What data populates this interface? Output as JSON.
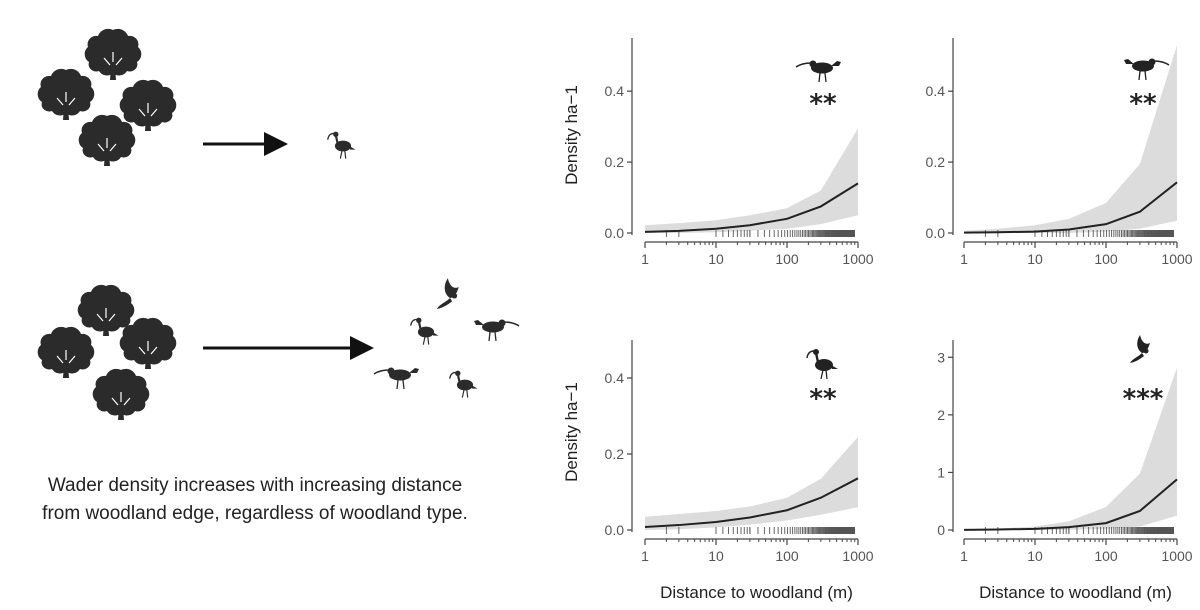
{
  "caption": {
    "line1": "Wader density increases with increasing distance",
    "line2": "from woodland edge, regardless of woodland type."
  },
  "icons": {
    "tree": "tree-icon",
    "arrow": "arrow-right-icon",
    "wader": "wader-bird-icon"
  },
  "colors": {
    "line": "#222222",
    "band": "#dcdcdc",
    "tree": "#2b2b2b"
  },
  "chart_data": [
    {
      "type": "line",
      "panel": "top-left",
      "bird": "wader-bird-icon",
      "significance": "**",
      "ylabel": "Density ha−1",
      "xlabel": "",
      "xscale": "log",
      "xlim": [
        1,
        1000
      ],
      "ylim": [
        0,
        0.4
      ],
      "xticks": [
        "1",
        "10",
        "100",
        "1000"
      ],
      "yticks": [
        "0.0",
        "0.2",
        "0.4"
      ],
      "x": [
        1,
        3,
        10,
        30,
        100,
        300,
        1000
      ],
      "y": [
        0.003,
        0.006,
        0.012,
        0.022,
        0.04,
        0.075,
        0.14
      ],
      "lower": [
        0.0,
        0.0,
        0.002,
        0.006,
        0.012,
        0.025,
        0.05
      ],
      "upper": [
        0.022,
        0.028,
        0.036,
        0.05,
        0.07,
        0.12,
        0.295
      ]
    },
    {
      "type": "line",
      "panel": "top-right",
      "bird": "wader-bird-icon",
      "significance": "**",
      "ylabel": "",
      "xlabel": "",
      "xscale": "log",
      "xlim": [
        1,
        1000
      ],
      "ylim": [
        0,
        0.4
      ],
      "xticks": [
        "1",
        "10",
        "100",
        "1000"
      ],
      "yticks": [
        "0.0",
        "0.2",
        "0.4"
      ],
      "x": [
        1,
        3,
        10,
        30,
        100,
        300,
        1000
      ],
      "y": [
        0.001,
        0.002,
        0.004,
        0.01,
        0.025,
        0.06,
        0.143
      ],
      "lower": [
        0.0,
        0.0,
        0.0,
        0.0,
        0.004,
        0.012,
        0.035
      ],
      "upper": [
        0.006,
        0.012,
        0.022,
        0.04,
        0.085,
        0.195,
        0.53
      ]
    },
    {
      "type": "line",
      "panel": "bottom-left",
      "bird": "wader-bird-icon",
      "significance": "**",
      "ylabel": "Density ha−1",
      "xlabel": "Distance to woodland (m)",
      "xscale": "log",
      "xlim": [
        1,
        1000
      ],
      "ylim": [
        0,
        0.4
      ],
      "xticks": [
        "1",
        "10",
        "100",
        "1000"
      ],
      "yticks": [
        "0.0",
        "0.2",
        "0.4"
      ],
      "x": [
        1,
        3,
        10,
        30,
        100,
        300,
        1000
      ],
      "y": [
        0.008,
        0.013,
        0.021,
        0.033,
        0.052,
        0.085,
        0.136
      ],
      "lower": [
        0.0,
        0.002,
        0.007,
        0.014,
        0.025,
        0.04,
        0.06
      ],
      "upper": [
        0.035,
        0.042,
        0.05,
        0.062,
        0.085,
        0.135,
        0.245
      ]
    },
    {
      "type": "line",
      "panel": "bottom-right",
      "bird": "wader-bird-icon",
      "significance": "***",
      "ylabel": "",
      "xlabel": "Distance to woodland (m)",
      "xscale": "log",
      "xlim": [
        1,
        1000
      ],
      "ylim": [
        0,
        3
      ],
      "xticks": [
        "1",
        "10",
        "100",
        "1000"
      ],
      "yticks": [
        "0",
        "1",
        "2",
        "3"
      ],
      "x": [
        1,
        3,
        10,
        30,
        100,
        300,
        1000
      ],
      "y": [
        0.003,
        0.008,
        0.02,
        0.05,
        0.12,
        0.33,
        0.88
      ],
      "lower": [
        0.0,
        0.0,
        0.0,
        0.005,
        0.02,
        0.06,
        0.25
      ],
      "upper": [
        0.01,
        0.025,
        0.06,
        0.15,
        0.4,
        0.98,
        2.82
      ]
    }
  ]
}
